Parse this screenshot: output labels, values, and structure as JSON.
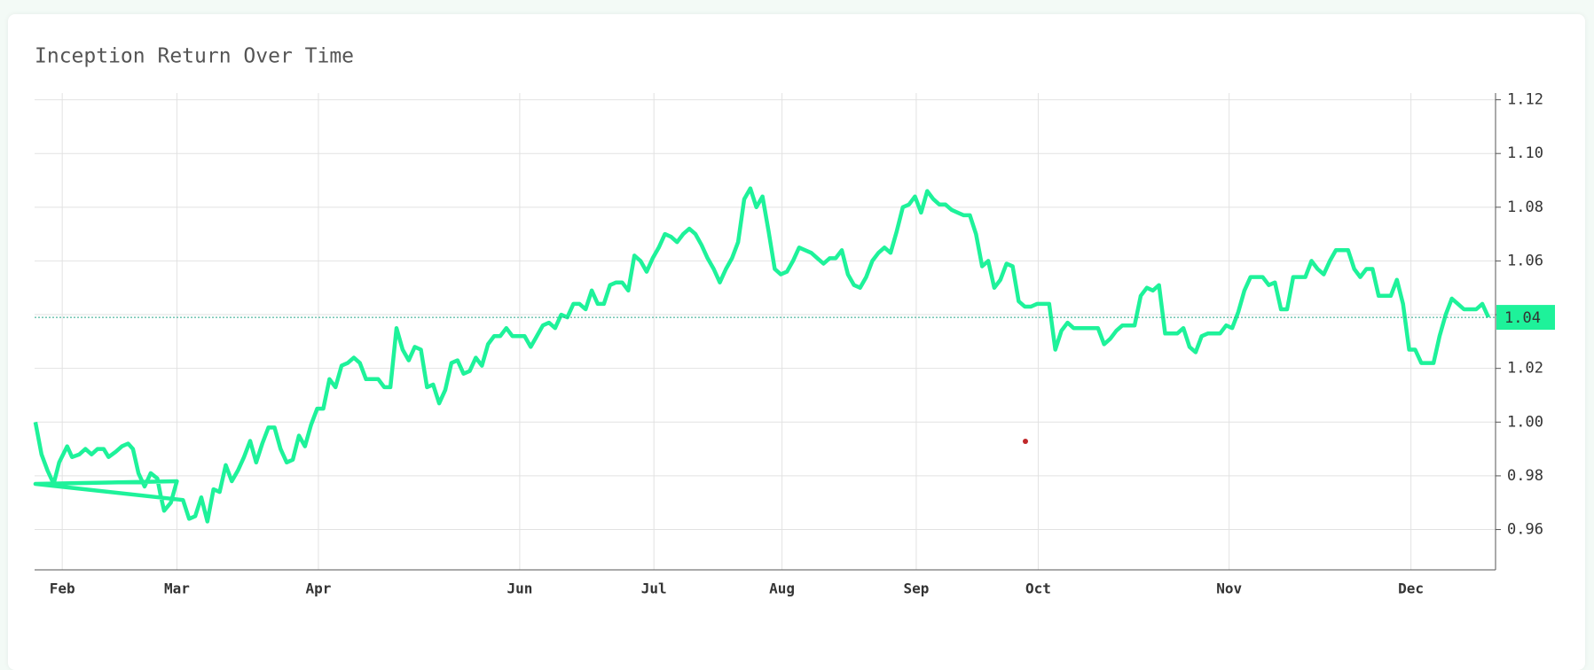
{
  "chart_data": {
    "type": "line",
    "title": "Inception Return Over Time",
    "color": "#1ef29a",
    "x": [
      0.8,
      1.8,
      2.8,
      3.8,
      4.7,
      6,
      6.8,
      8,
      9,
      10,
      11,
      12,
      12.8,
      14,
      15,
      16,
      16.8,
      17.7,
      18.7,
      19.7,
      20.8,
      21.3,
      21.9,
      23,
      24,
      0.8,
      25,
      26,
      27,
      28,
      29,
      30,
      31,
      32,
      33,
      34,
      35,
      36,
      37,
      38,
      39,
      40,
      41,
      42,
      43,
      44,
      45,
      46,
      47,
      48,
      49,
      50,
      51,
      52,
      53,
      54,
      55,
      56,
      57,
      58,
      59,
      60,
      61,
      62,
      63,
      64,
      65,
      66,
      67,
      68,
      69,
      70,
      71,
      72,
      73,
      74,
      75,
      76,
      77,
      78,
      79,
      80,
      81,
      82,
      83,
      84,
      85,
      86,
      87,
      88,
      89,
      90,
      91,
      92,
      93,
      94,
      95,
      96,
      97,
      98,
      99,
      100,
      101,
      102,
      103,
      104,
      105,
      106,
      107,
      108,
      109,
      110,
      111,
      112,
      113,
      114,
      115,
      116,
      117,
      118,
      119,
      120,
      121,
      122,
      123,
      124,
      125,
      126,
      127,
      128,
      129,
      130,
      131,
      132,
      133,
      134,
      135,
      136,
      137,
      138,
      139,
      140,
      141,
      142,
      143,
      144,
      145,
      146,
      147,
      148,
      149,
      150,
      151,
      152,
      153,
      154,
      155,
      156,
      157,
      158,
      159,
      160,
      161,
      162,
      163,
      164,
      165,
      166,
      167,
      168,
      169,
      170,
      171,
      172,
      173,
      174,
      175,
      176,
      177,
      178,
      179,
      180,
      181,
      182,
      183,
      184,
      185,
      186,
      187,
      188,
      189,
      190,
      191,
      192,
      193,
      194,
      195,
      196,
      197,
      198,
      199,
      200,
      201,
      202,
      203,
      204,
      205,
      206,
      207,
      208,
      209,
      210,
      211,
      212,
      213,
      214,
      215,
      216,
      217,
      218,
      219,
      220,
      221,
      222,
      223,
      224,
      225,
      226,
      227,
      228,
      229,
      230,
      231,
      232,
      233,
      234,
      235,
      236,
      237,
      238,
      239
    ],
    "values": [
      1.0,
      0.988,
      0.982,
      0.977,
      0.985,
      0.991,
      0.987,
      0.988,
      0.99,
      0.988,
      0.99,
      0.99,
      0.987,
      0.989,
      0.991,
      0.992,
      0.99,
      0.981,
      0.976,
      0.981,
      0.979,
      0.973,
      0.967,
      0.97,
      0.978,
      0.977,
      0.971,
      0.964,
      0.965,
      0.972,
      0.963,
      0.975,
      0.974,
      0.984,
      0.978,
      0.982,
      0.987,
      0.993,
      0.985,
      0.992,
      0.998,
      0.998,
      0.99,
      0.985,
      0.986,
      0.995,
      0.991,
      0.999,
      1.005,
      1.005,
      1.016,
      1.013,
      1.021,
      1.022,
      1.024,
      1.022,
      1.016,
      1.016,
      1.016,
      1.013,
      1.013,
      1.035,
      1.027,
      1.023,
      1.028,
      1.027,
      1.013,
      1.014,
      1.007,
      1.012,
      1.022,
      1.023,
      1.018,
      1.019,
      1.024,
      1.021,
      1.029,
      1.032,
      1.032,
      1.035,
      1.032,
      1.032,
      1.032,
      1.028,
      1.032,
      1.036,
      1.037,
      1.035,
      1.04,
      1.039,
      1.044,
      1.044,
      1.042,
      1.049,
      1.044,
      1.044,
      1.051,
      1.052,
      1.052,
      1.049,
      1.062,
      1.06,
      1.056,
      1.061,
      1.065,
      1.07,
      1.069,
      1.067,
      1.07,
      1.072,
      1.07,
      1.066,
      1.061,
      1.057,
      1.052,
      1.057,
      1.061,
      1.067,
      1.083,
      1.087,
      1.08,
      1.084,
      1.071,
      1.057,
      1.055,
      1.056,
      1.06,
      1.065,
      1.064,
      1.063,
      1.061,
      1.059,
      1.061,
      1.061,
      1.064,
      1.055,
      1.051,
      1.05,
      1.054,
      1.06,
      1.063,
      1.065,
      1.063,
      1.071,
      1.08,
      1.081,
      1.084,
      1.078,
      1.086,
      1.083,
      1.081,
      1.081,
      1.079,
      1.078,
      1.077,
      1.077,
      1.07,
      1.058,
      1.06,
      1.05,
      1.053,
      1.059,
      1.058,
      1.045,
      1.043,
      1.043,
      1.044,
      1.044,
      1.044,
      1.027,
      1.034,
      1.037,
      1.035,
      1.035,
      1.035,
      1.035,
      1.035,
      1.029,
      1.031,
      1.034,
      1.036,
      1.036,
      1.036,
      1.047,
      1.05,
      1.049,
      1.051,
      1.033,
      1.033,
      1.033,
      1.035,
      1.028,
      1.026,
      1.032,
      1.033,
      1.033,
      1.033,
      1.036,
      1.035,
      1.041,
      1.049,
      1.054,
      1.054,
      1.054,
      1.051,
      1.052,
      1.042,
      1.042,
      1.054,
      1.054,
      1.054,
      1.06,
      1.057,
      1.055,
      1.06,
      1.064,
      1.064,
      1.064,
      1.057,
      1.054,
      1.057,
      1.057,
      1.047,
      1.047,
      1.047,
      1.053,
      1.044,
      1.027,
      1.027,
      1.022,
      1.022,
      1.022,
      1.032,
      1.04,
      1.046,
      1.044,
      1.042,
      1.042,
      1.042,
      1.044,
      1.039
    ],
    "xlim": [
      0.67,
      240.17
    ],
    "xticks": [
      {
        "value": 5.2,
        "label": "Feb"
      },
      {
        "value": 24,
        "label": "Mar"
      },
      {
        "value": 47.2,
        "label": "Apr"
      },
      {
        "value": 80.2,
        "label": "Jun"
      },
      {
        "value": 102.2,
        "label": "Jul"
      },
      {
        "value": 123.2,
        "label": "Aug"
      },
      {
        "value": 145.2,
        "label": "Sep"
      },
      {
        "value": 165.2,
        "label": "Oct"
      },
      {
        "value": 196.5,
        "label": "Nov"
      },
      {
        "value": 226.3,
        "label": "Dec"
      }
    ],
    "ylim": [
      0.945,
      1.1225
    ],
    "yticks": [
      0.96,
      0.98,
      {
        "value": 1,
        "label": "1.00"
      },
      1.02,
      1.04,
      1.06,
      1.08,
      {
        "value": 1.1,
        "label": "1.10"
      },
      1.12
    ],
    "grid": true,
    "last_value": {
      "value": 1.039,
      "label": "1.04"
    }
  }
}
